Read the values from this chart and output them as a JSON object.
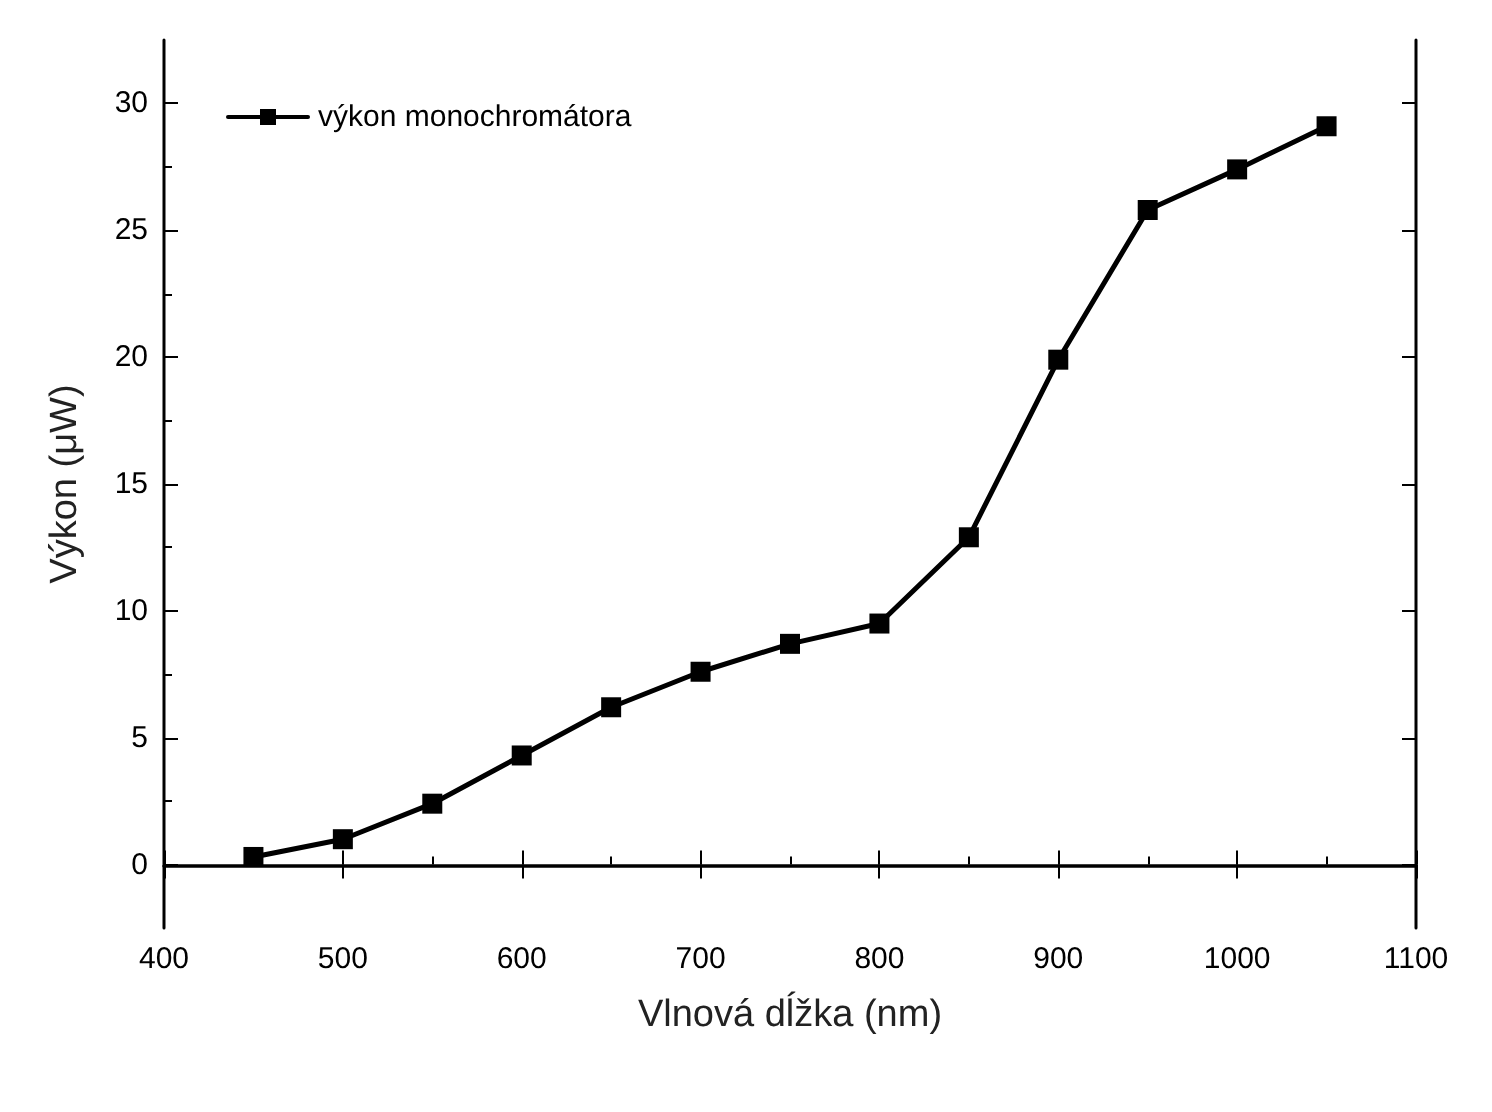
{
  "chart_data": {
    "type": "line",
    "xlabel": "Vlnová dĺžka (nm)",
    "ylabel": "Výkon (μW)",
    "x": [
      450,
      500,
      550,
      600,
      650,
      700,
      750,
      800,
      850,
      900,
      950,
      1000,
      1050
    ],
    "series": [
      {
        "name": "výkon monochromátora",
        "color": "#000000",
        "values": [
          0.3,
          1.0,
          2.4,
          4.3,
          6.2,
          7.6,
          8.7,
          9.5,
          12.9,
          19.9,
          25.8,
          27.4,
          29.1
        ]
      }
    ],
    "xlim": [
      400,
      1100
    ],
    "xticks": [
      400,
      500,
      600,
      700,
      800,
      900,
      1000,
      1100
    ],
    "ylim": [
      -2.5,
      32.5
    ],
    "yticks": [
      0,
      5,
      10,
      15,
      20,
      25,
      30
    ],
    "grid": false,
    "legend": "top left",
    "marker": "square",
    "line_style": "solid"
  }
}
